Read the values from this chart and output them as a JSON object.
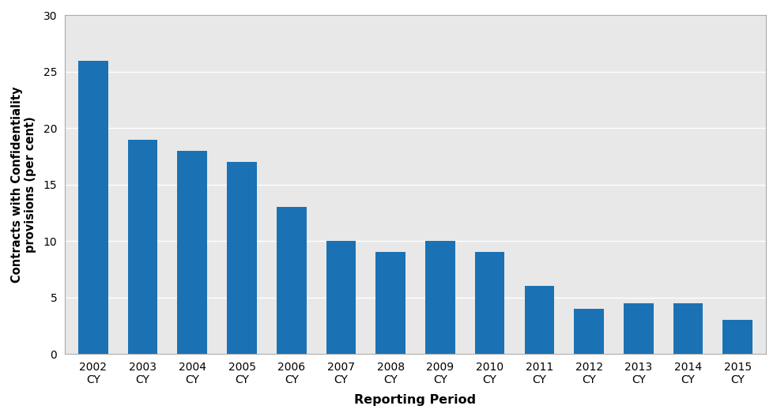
{
  "categories": [
    "2002\nCY",
    "2003\nCY",
    "2004\nCY",
    "2005\nCY",
    "2006\nCY",
    "2007\nCY",
    "2008\nCY",
    "2009\nCY",
    "2010\nCY",
    "2011\nCY",
    "2012\nCY",
    "2013\nCY",
    "2014\nCY",
    "2015\nCY"
  ],
  "values": [
    26,
    19,
    18,
    17,
    13,
    10,
    9,
    10,
    9,
    6,
    4,
    4.5,
    4.5,
    3
  ],
  "bar_color": "#1a72b5",
  "ylabel": "Contracts with Confidentiality\nprovisions (per cent)",
  "xlabel": "Reporting Period",
  "ylim": [
    0,
    30
  ],
  "yticks": [
    0,
    5,
    10,
    15,
    20,
    25,
    30
  ],
  "background_color": "#ffffff",
  "plot_bg_color": "#e8e8e8",
  "grid_color": "#ffffff",
  "spine_color": "#aaaaaa",
  "ylabel_fontsize": 10.5,
  "xlabel_fontsize": 11.5,
  "tick_fontsize": 10,
  "bar_width": 0.6
}
